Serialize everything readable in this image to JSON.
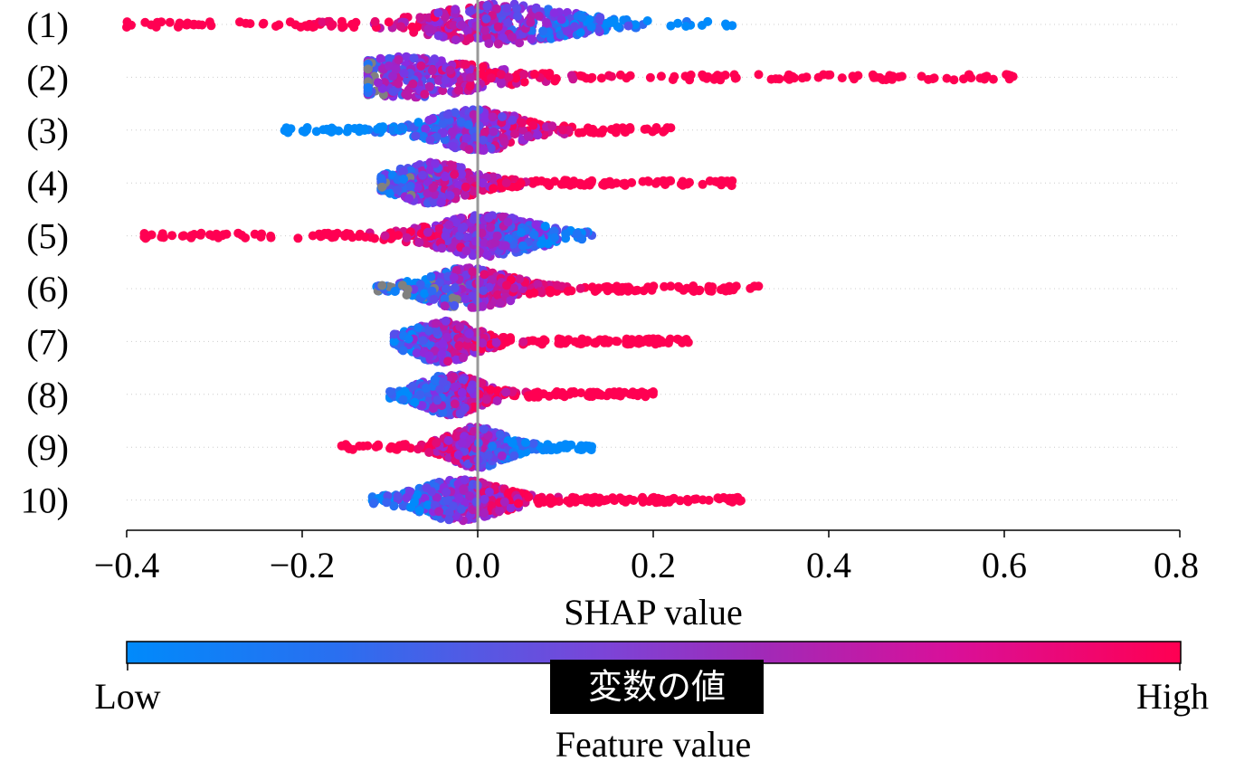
{
  "chart_data": {
    "type": "scatter",
    "subtype": "beeswarm",
    "features": [
      "(1)",
      "(2)",
      "(3)",
      "(4)",
      "(5)",
      "(6)",
      "(7)",
      "(8)",
      "(9)",
      "10)"
    ],
    "xlabel": "SHAP value",
    "xlim": [
      -0.4,
      0.8
    ],
    "xticks": [
      -0.4,
      -0.2,
      0.0,
      0.2,
      0.4,
      0.6,
      0.8
    ],
    "xtick_labels": [
      "−0.4",
      "−0.2",
      "0.0",
      "0.2",
      "0.4",
      "0.6",
      "0.8"
    ],
    "zero_line": 0.0,
    "grid": "dotted horizontal lines per feature",
    "series": [
      {
        "feature": "(1)",
        "min": -0.4,
        "max": 0.29,
        "center": 0.03,
        "low_color_side": "positive",
        "high_color_side": "negative"
      },
      {
        "feature": "(2)",
        "min": -0.125,
        "max": 0.61,
        "center": -0.08,
        "low_color_side": "negative",
        "high_color_side": "positive"
      },
      {
        "feature": "(3)",
        "min": -0.22,
        "max": 0.22,
        "center": 0.0,
        "low_color_side": "negative",
        "high_color_side": "positive"
      },
      {
        "feature": "(4)",
        "min": -0.11,
        "max": 0.29,
        "center": -0.05,
        "low_color_side": "negative",
        "high_color_side": "positive"
      },
      {
        "feature": "(5)",
        "min": -0.38,
        "max": 0.13,
        "center": 0.01,
        "low_color_side": "positive",
        "high_color_side": "negative"
      },
      {
        "feature": "(6)",
        "min": -0.115,
        "max": 0.32,
        "center": -0.01,
        "low_color_side": "mixed",
        "high_color_side": "positive"
      },
      {
        "feature": "(7)",
        "min": -0.095,
        "max": 0.24,
        "center": -0.04,
        "low_color_side": "negative",
        "high_color_side": "positive"
      },
      {
        "feature": "(8)",
        "min": -0.1,
        "max": 0.2,
        "center": -0.03,
        "low_color_side": "mixed",
        "high_color_side": "positive"
      },
      {
        "feature": "(9)",
        "min": -0.155,
        "max": 0.13,
        "center": 0.0,
        "low_color_side": "positive",
        "high_color_side": "negative"
      },
      {
        "feature": "10)",
        "min": -0.12,
        "max": 0.3,
        "center": -0.02,
        "low_color_side": "negative",
        "high_color_side": "positive"
      }
    ],
    "colorbar": {
      "low_label": "Low",
      "high_label": "High",
      "title": "Feature value",
      "overlay_label": "変数の値",
      "low_color": "#008afb",
      "mid_color": "#8a2be2",
      "high_color": "#ff0052"
    },
    "missing_color": "#808080"
  }
}
